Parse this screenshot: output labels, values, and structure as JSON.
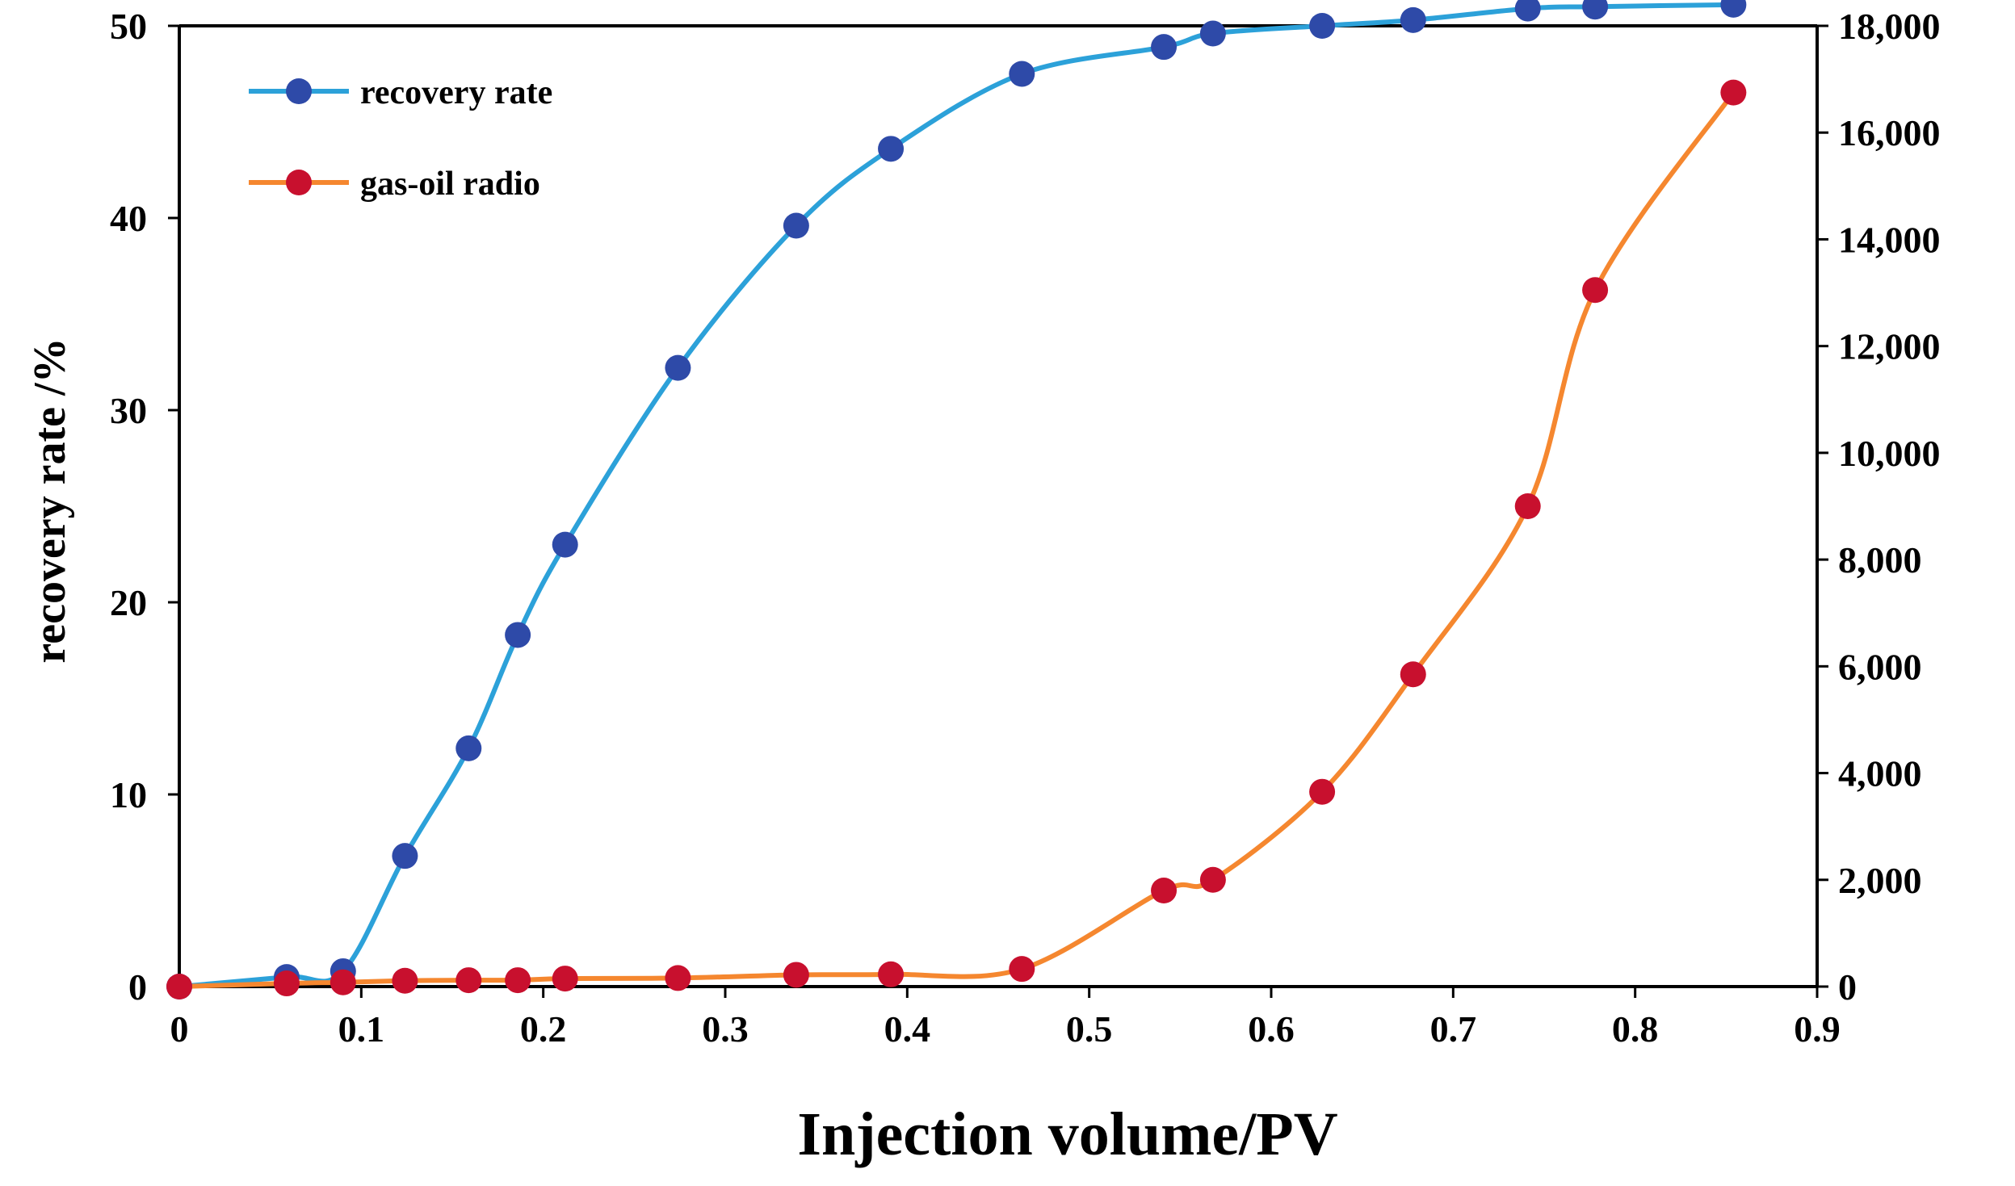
{
  "chart_data": {
    "type": "line",
    "title": "",
    "xlabel": "Injection volume/PV",
    "ylabel": "recovery rate /%",
    "y2label": "",
    "xlim": [
      0,
      0.9
    ],
    "ylim": [
      0,
      50
    ],
    "y2lim": [
      0,
      18000
    ],
    "x_ticks": [
      "0",
      "0.1",
      "0.2",
      "0.3",
      "0.4",
      "0.5",
      "0.6",
      "0.7",
      "0.8",
      "0.9"
    ],
    "y_ticks": [
      "0",
      "10",
      "20",
      "30",
      "40",
      "50"
    ],
    "y2_ticks": [
      "0",
      "2,000",
      "4,000",
      "6,000",
      "8,000",
      "10,000",
      "12,000",
      "14,000",
      "16,000",
      "18,000"
    ],
    "legend_position": "top-left",
    "grid": false,
    "series": [
      {
        "name": "recovery rate",
        "axis": "left",
        "line_color": "#2ca1d9",
        "marker_color": "#2e4aa8",
        "x": [
          0,
          0.059,
          0.09,
          0.124,
          0.159,
          0.186,
          0.212,
          0.274,
          0.339,
          0.391,
          0.463,
          0.541,
          0.568,
          0.628,
          0.678,
          0.741,
          0.778,
          0.854
        ],
        "y": [
          0,
          0.5,
          0.8,
          6.8,
          12.4,
          18.3,
          23.0,
          32.2,
          39.6,
          43.6,
          47.5,
          48.9,
          49.6,
          50.0,
          50.3,
          50.9,
          51.0,
          51.1
        ]
      },
      {
        "name": "gas-oil radio",
        "axis": "right",
        "line_color": "#f5872f",
        "marker_color": "#c8102e",
        "x": [
          0,
          0.059,
          0.09,
          0.124,
          0.159,
          0.186,
          0.212,
          0.274,
          0.339,
          0.391,
          0.463,
          0.541,
          0.568,
          0.628,
          0.678,
          0.741,
          0.778,
          0.854
        ],
        "y": [
          0,
          60,
          80,
          110,
          120,
          120,
          150,
          160,
          220,
          230,
          330,
          1800,
          2000,
          3650,
          5850,
          9000,
          13050,
          16750
        ]
      }
    ]
  }
}
